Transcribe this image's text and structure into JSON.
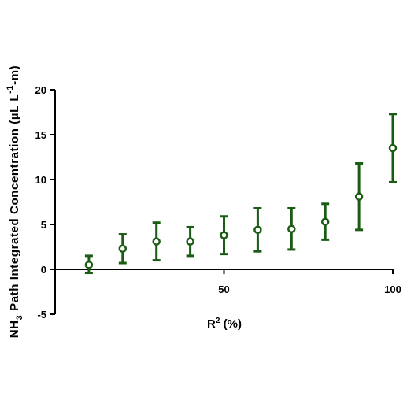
{
  "chart_data": {
    "type": "scatter",
    "x": [
      10,
      20,
      30,
      40,
      50,
      60,
      70,
      80,
      90,
      100
    ],
    "y": [
      0.5,
      2.3,
      3.1,
      3.1,
      3.8,
      4.4,
      4.5,
      5.3,
      8.1,
      13.5
    ],
    "err_low": [
      0.9,
      1.6,
      2.1,
      1.6,
      2.1,
      2.4,
      2.3,
      2.0,
      3.7,
      3.8
    ],
    "err_high": [
      1.0,
      1.6,
      2.1,
      1.6,
      2.1,
      2.4,
      2.3,
      2.0,
      3.7,
      3.8
    ],
    "xlim": [
      0,
      100
    ],
    "ylim": [
      -5,
      20
    ],
    "x_ticks": [
      50,
      100
    ],
    "y_ticks": [
      -5,
      0,
      5,
      10,
      15,
      20
    ],
    "xlabel": {
      "base": "R",
      "sup": "2",
      "rest": " (%)"
    },
    "ylabel": {
      "part1": "NH",
      "sub": "3",
      "part2": " Path Integrated Concentration (µL L",
      "sup": "-1",
      "part3": "-m)"
    },
    "grid": false,
    "legend": "none",
    "color": "#1a5c14"
  }
}
